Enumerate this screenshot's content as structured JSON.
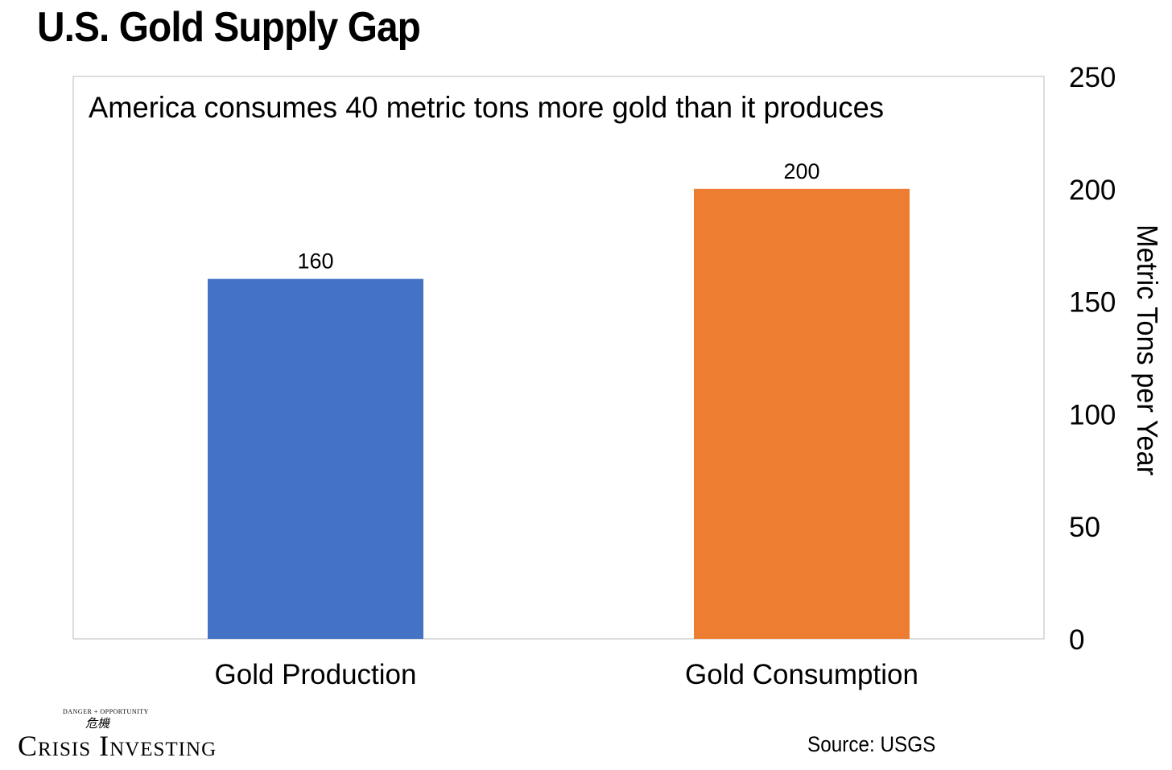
{
  "page": {
    "title": "U.S. Gold Supply Gap",
    "source": "Source: USGS",
    "logo": {
      "arc_text": "DANGER + OPPORTUNITY",
      "glyph_text": "危機",
      "brand_text": "Crisis Investing"
    }
  },
  "chart_data": {
    "type": "bar",
    "title": "America consumes 40 metric tons more gold than it produces",
    "xlabel": "",
    "ylabel": "Metric Tons per Year",
    "y_axis_position": "right",
    "ylim": [
      0,
      250
    ],
    "yticks": [
      0,
      50,
      100,
      150,
      200,
      250
    ],
    "grid": false,
    "categories": [
      "Gold Production",
      "Gold Consumption"
    ],
    "values": [
      160,
      200
    ],
    "bar_colors": [
      "#4472C4",
      "#ED7D31"
    ],
    "data_labels": [
      "160",
      "200"
    ]
  }
}
